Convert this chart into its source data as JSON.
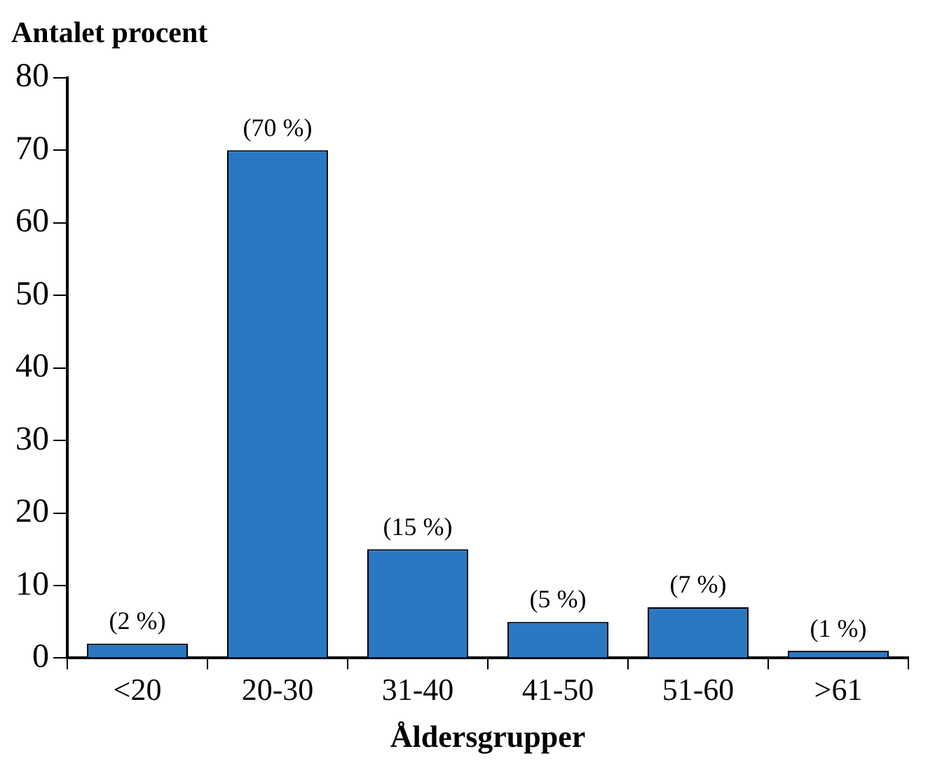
{
  "chart_data": {
    "type": "bar",
    "ylabel": "Antalet procent",
    "xlabel": "Åldersgrupper",
    "categories": [
      "<20",
      "20-30",
      "31-40",
      "41-50",
      "51-60",
      ">61"
    ],
    "values": [
      2,
      70,
      15,
      5,
      7,
      1
    ],
    "value_labels": [
      "(2 %)",
      "(70 %)",
      "(15 %)",
      "(5 %)",
      "(7 %)",
      "(1 %)"
    ],
    "color": "#2a78c2",
    "ylim": [
      0,
      80
    ],
    "yticks": [
      0,
      10,
      20,
      30,
      40,
      50,
      60,
      70,
      80
    ],
    "grid": false,
    "legend": false
  }
}
